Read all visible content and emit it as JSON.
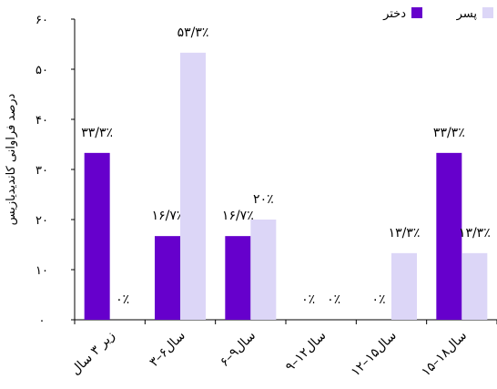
{
  "chart_data": {
    "type": "bar",
    "ylabel": "درصد فراوانی کاندیدیازیس",
    "ylim": [
      0,
      60
    ],
    "yticks": [
      {
        "value": 0,
        "label": "۰"
      },
      {
        "value": 10,
        "label": "۱۰"
      },
      {
        "value": 20,
        "label": "۲۰"
      },
      {
        "value": 30,
        "label": "۳۰"
      },
      {
        "value": 40,
        "label": "۴۰"
      },
      {
        "value": 50,
        "label": "۵۰"
      },
      {
        "value": 60,
        "label": "۶۰"
      }
    ],
    "categories": [
      "زیر ۳ سال",
      "۳–۶سال",
      "۶–۹سال",
      "۹–۱۲سال",
      "۱۲–۱۵سال",
      "۱۵–۱۸سال"
    ],
    "series": [
      {
        "name": "دختر",
        "color": "#6600cc",
        "values": [
          33.3,
          16.7,
          16.7,
          0,
          0,
          33.3
        ],
        "labels": [
          "۳۳/۳٪",
          "۱۶/۷٪",
          "۱۶/۷٪",
          "۰٪",
          "۰٪",
          "۳۳/۳٪"
        ]
      },
      {
        "name": "پسر",
        "color": "#dcd6f7",
        "values": [
          0,
          53.3,
          20,
          0,
          13.3,
          13.3
        ],
        "labels": [
          "۰٪",
          "۵۳/۳٪",
          "۲۰٪",
          "۰٪",
          "۱۳/۳٪",
          "۱۳/۳٪"
        ]
      }
    ],
    "legend": "top-right",
    "grid": false
  }
}
